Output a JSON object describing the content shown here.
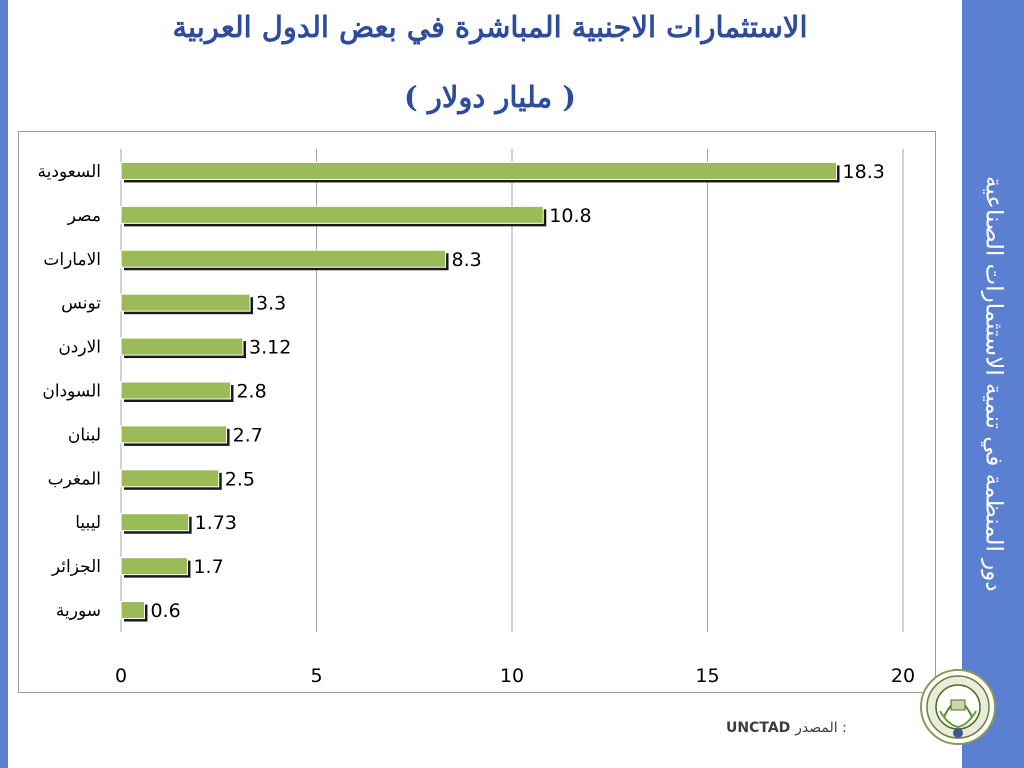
{
  "title": {
    "line1": "الاستثمارات الاجنبية المباشرة في بعض الدول العربية",
    "line2": "( مليار دولار )"
  },
  "sidebar": {
    "text": "دور المنظمة في تنمية الاستثمارات الصناعية",
    "color": "#5b7fd1"
  },
  "footer": {
    "source_label": "المصدر :",
    "source_value": "UNCTAD"
  },
  "logo": {
    "icon": "aidmo-emblem-icon"
  },
  "chart_data": {
    "type": "bar",
    "orientation": "horizontal",
    "categories": [
      "السعودية",
      "مصر",
      "الامارات",
      "تونس",
      "الاردن",
      "السودان",
      "لبنان",
      "المغرب",
      "ليبيا",
      "الجزائر",
      "سورية"
    ],
    "values": [
      18.3,
      10.8,
      8.3,
      3.3,
      3.12,
      2.8,
      2.7,
      2.5,
      1.73,
      1.7,
      0.6
    ],
    "value_labels": [
      "18.3",
      "10.8",
      "8.3",
      "3.3",
      "3.12",
      "2.8",
      "2.7",
      "2.5",
      "1.73",
      "1.7",
      "0.6"
    ],
    "xlim": [
      0,
      20
    ],
    "x_ticks": [
      0,
      5,
      10,
      15,
      20
    ],
    "grid": "vertical",
    "bar_color": "#9bbb59",
    "title": "",
    "xlabel": "",
    "ylabel": ""
  }
}
